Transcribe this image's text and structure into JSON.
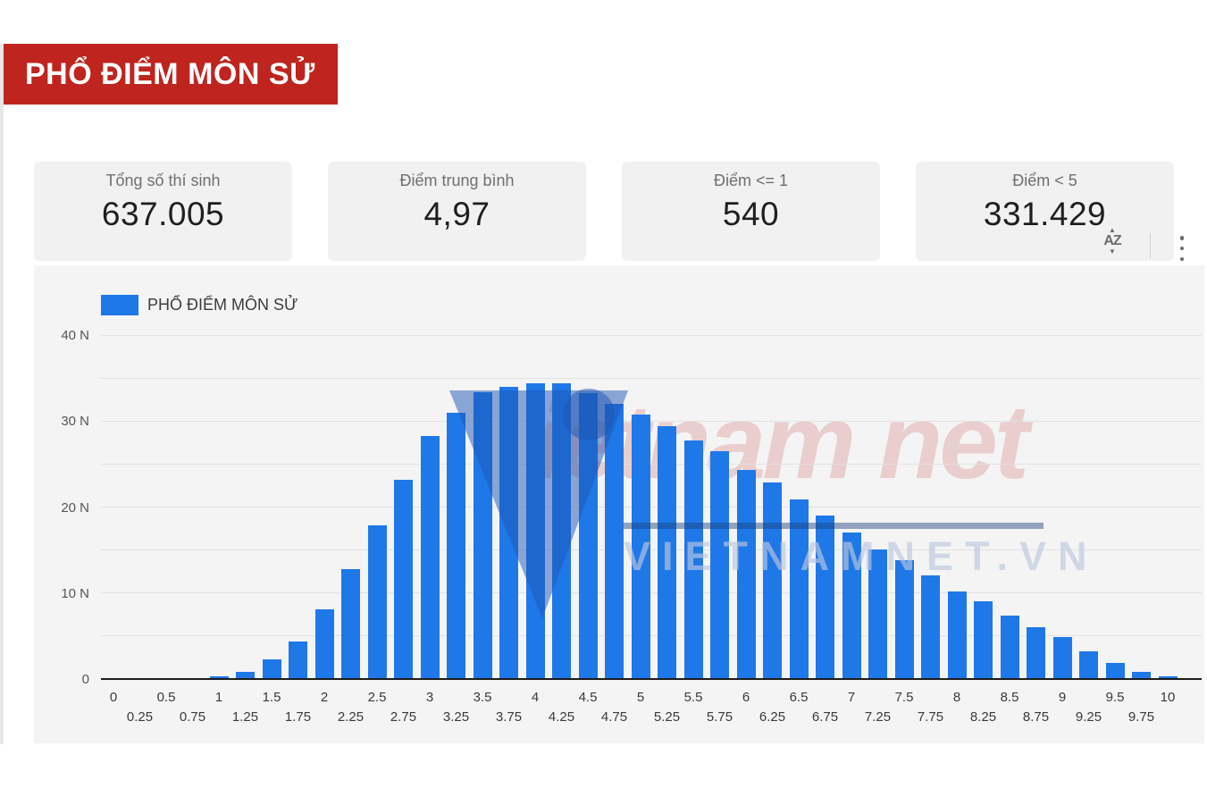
{
  "header": {
    "title": "PHỔ ĐIỂM MÔN SỬ"
  },
  "stats": {
    "cards": [
      {
        "label": "Tổng số thí sinh",
        "value": "637.005"
      },
      {
        "label": "Điểm trung bình",
        "value": "4,97"
      },
      {
        "label": "Điểm <= 1",
        "value": "540"
      },
      {
        "label": "Điểm < 5",
        "value": "331.429"
      }
    ]
  },
  "toolbar": {
    "sort_icon_text": "AZ",
    "sort_icon_up": "▲",
    "sort_icon_down": "▼"
  },
  "watermark": {
    "script_text": "ietnam net",
    "caps_text": "VIETNAMNET.VN"
  },
  "chart_data": {
    "type": "bar",
    "title": "PHỔ ĐIỂM MÔN SỬ",
    "legend": "PHỔ ĐIỂM MÔN SỬ",
    "legend_position": "top-left",
    "bar_color": "#1f78e8",
    "xlabel": "",
    "ylabel": "",
    "ylim": [
      0,
      40000
    ],
    "grid": true,
    "gridline_step": 5000,
    "y_ticks": [
      {
        "v": 0,
        "label": "0"
      },
      {
        "v": 10000,
        "label": "10 N"
      },
      {
        "v": 20000,
        "label": "20 N"
      },
      {
        "v": 30000,
        "label": "30 N"
      },
      {
        "v": 40000,
        "label": "40 N"
      }
    ],
    "x": [
      0,
      0.25,
      0.5,
      0.75,
      1,
      1.25,
      1.5,
      1.75,
      2,
      2.25,
      2.5,
      2.75,
      3,
      3.25,
      3.5,
      3.75,
      4,
      4.25,
      4.5,
      4.75,
      5,
      5.25,
      5.5,
      5.75,
      6,
      6.25,
      6.5,
      6.75,
      7,
      7.25,
      7.5,
      7.75,
      8,
      8.25,
      8.5,
      8.75,
      9,
      9.25,
      9.5,
      9.75,
      10
    ],
    "values": [
      23,
      37,
      65,
      126,
      289,
      860,
      2300,
      4400,
      8100,
      12800,
      17900,
      23200,
      28300,
      31000,
      33300,
      34000,
      34400,
      34400,
      33200,
      32000,
      30800,
      29400,
      27700,
      26500,
      24300,
      22900,
      20900,
      19000,
      17000,
      15100,
      13800,
      12100,
      10200,
      9000,
      7400,
      6000,
      4900,
      3200,
      1900,
      830,
      270
    ]
  }
}
